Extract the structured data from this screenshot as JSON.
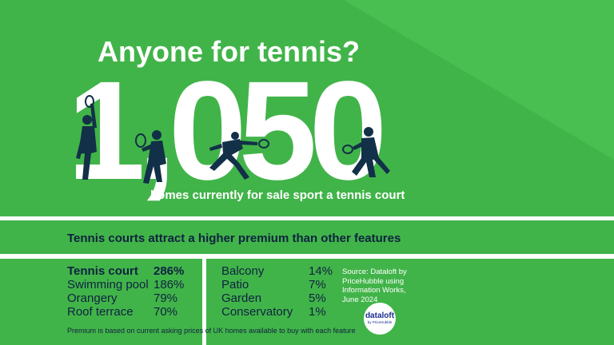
{
  "title": "Anyone for tennis?",
  "big_number": "1,050",
  "subtitle": "homes currently for sale sport a tennis court",
  "band_heading": "Tennis courts attract a higher premium than other features",
  "features_left": [
    {
      "name": "Tennis court",
      "value": "286%",
      "emphasis": true
    },
    {
      "name": "Swimming pool",
      "value": "186%"
    },
    {
      "name": "Orangery",
      "value": "79%"
    },
    {
      "name": "Roof terrace",
      "value": "70%"
    }
  ],
  "features_right": [
    {
      "name": "Balcony",
      "value": "14%"
    },
    {
      "name": "Patio",
      "value": "7%"
    },
    {
      "name": "Garden",
      "value": "5%"
    },
    {
      "name": "Conservatory",
      "value": "1%"
    }
  ],
  "source": {
    "line1": "Source: Dataloft by",
    "line2": "PriceHubble using",
    "line3": "Information Works,",
    "line4": "June 2024"
  },
  "footnote": "Premium is based on current asking prices of UK homes available to buy with each feature",
  "logo": {
    "main": "dataloft",
    "sub": "by PriceHubble"
  },
  "colors": {
    "background": "#41b449",
    "court_lines": "#ffffff",
    "text_dark": "#0f2240",
    "silhouette": "#123047"
  },
  "icons": [
    "tennis-player-serve-icon",
    "tennis-player-forehand-icon",
    "tennis-player-lunge-icon",
    "tennis-player-backhand-icon"
  ]
}
